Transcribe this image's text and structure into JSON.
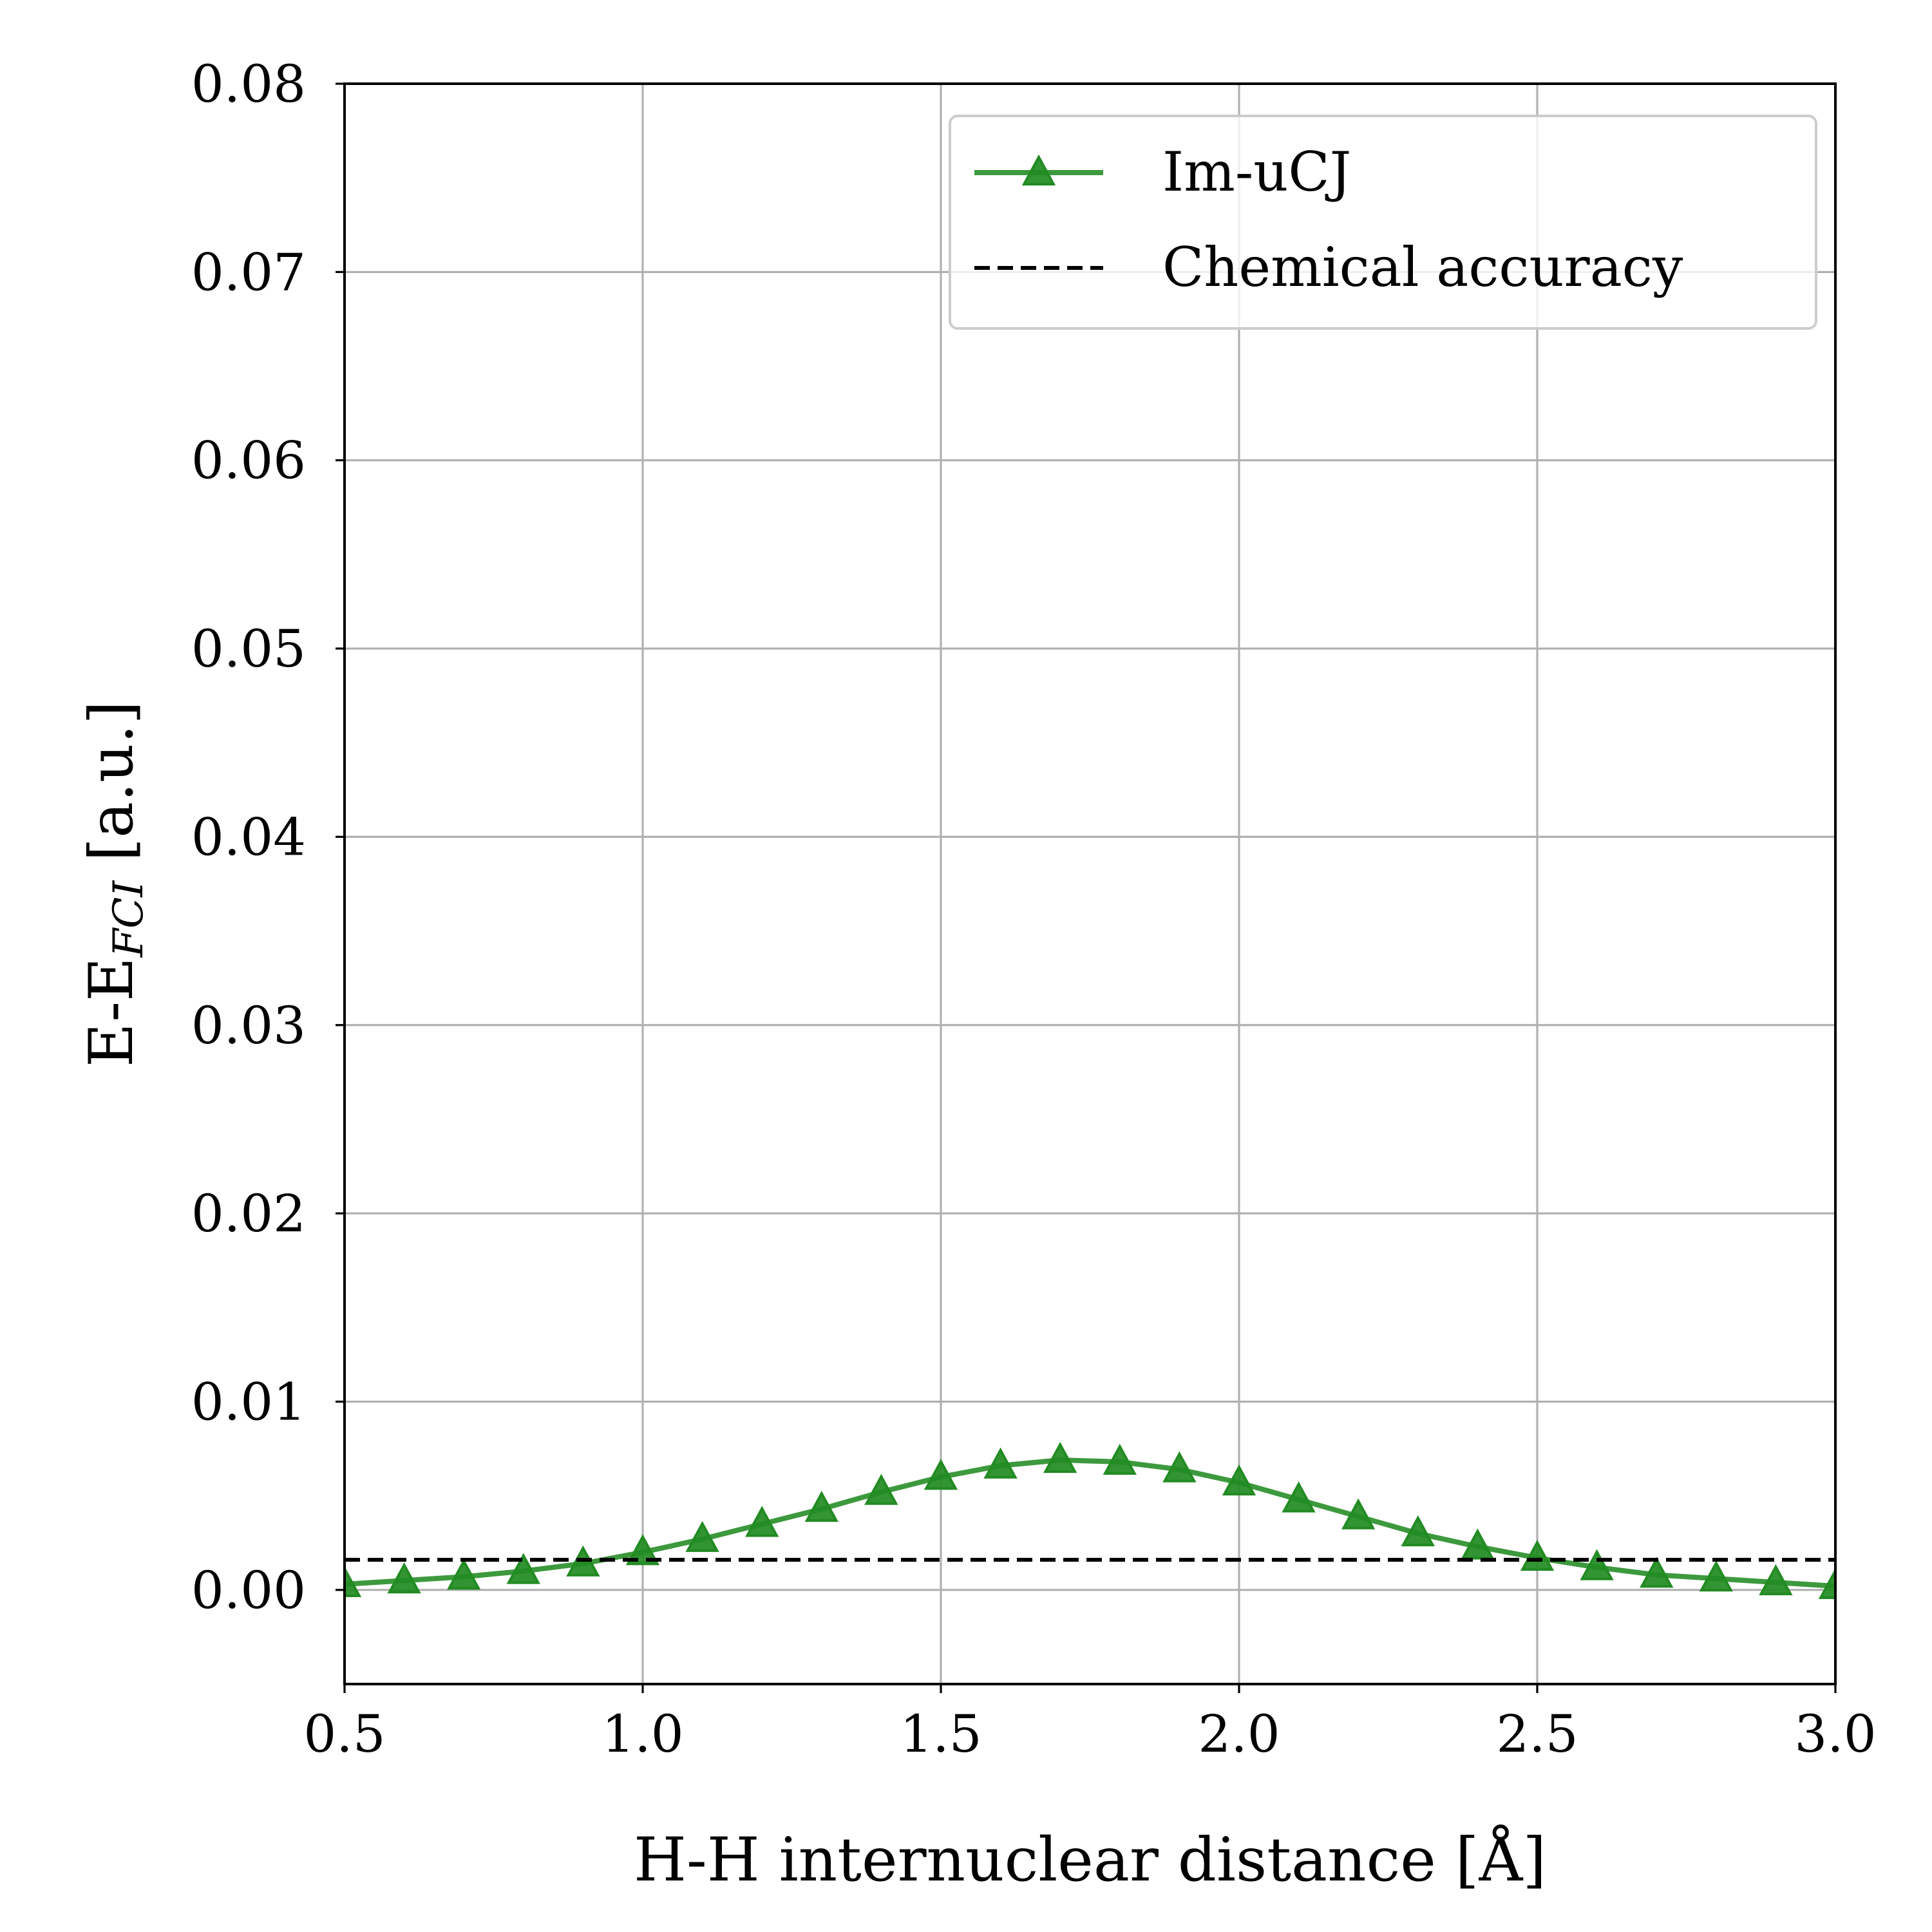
{
  "chart_data": {
    "type": "line",
    "title": "",
    "xlabel": "H-H internuclear distance [Å]",
    "ylabel": {
      "main": "E-E",
      "subscript": "FCI",
      "unit": " [a.u.]"
    },
    "xlim": [
      0.5,
      3.0
    ],
    "ylim": [
      -0.005,
      0.08
    ],
    "xticks": [
      0.5,
      1.0,
      1.5,
      2.0,
      2.5,
      3.0
    ],
    "xtick_labels": [
      "0.5",
      "1.0",
      "1.5",
      "2.0",
      "2.5",
      "3.0"
    ],
    "yticks": [
      0.0,
      0.01,
      0.02,
      0.03,
      0.04,
      0.05,
      0.06,
      0.07,
      0.08
    ],
    "ytick_labels": [
      "0.00",
      "0.01",
      "0.02",
      "0.03",
      "0.04",
      "0.05",
      "0.06",
      "0.07",
      "0.08"
    ],
    "grid": true,
    "legend_position": "top-right",
    "series": [
      {
        "name": "Im-uCJ",
        "color": "#228B22",
        "marker": "triangle-up",
        "linestyle": "solid",
        "x": [
          0.5,
          0.6,
          0.7,
          0.8,
          0.9,
          1.0,
          1.1,
          1.2,
          1.3,
          1.4,
          1.5,
          1.6,
          1.7,
          1.8,
          1.9,
          2.0,
          2.1,
          2.2,
          2.3,
          2.4,
          2.5,
          2.6,
          2.7,
          2.8,
          2.9,
          3.0
        ],
        "y": [
          0.0003,
          0.0005,
          0.0007,
          0.001,
          0.0014,
          0.002,
          0.0027,
          0.0035,
          0.0043,
          0.0052,
          0.006,
          0.0066,
          0.0069,
          0.0068,
          0.0064,
          0.0057,
          0.0048,
          0.0039,
          0.003,
          0.0023,
          0.0017,
          0.0012,
          0.0008,
          0.0006,
          0.0004,
          0.0002
        ]
      },
      {
        "name": "Chemical accuracy",
        "color": "#000000",
        "linestyle": "dashed",
        "hline": 0.0016
      }
    ]
  }
}
